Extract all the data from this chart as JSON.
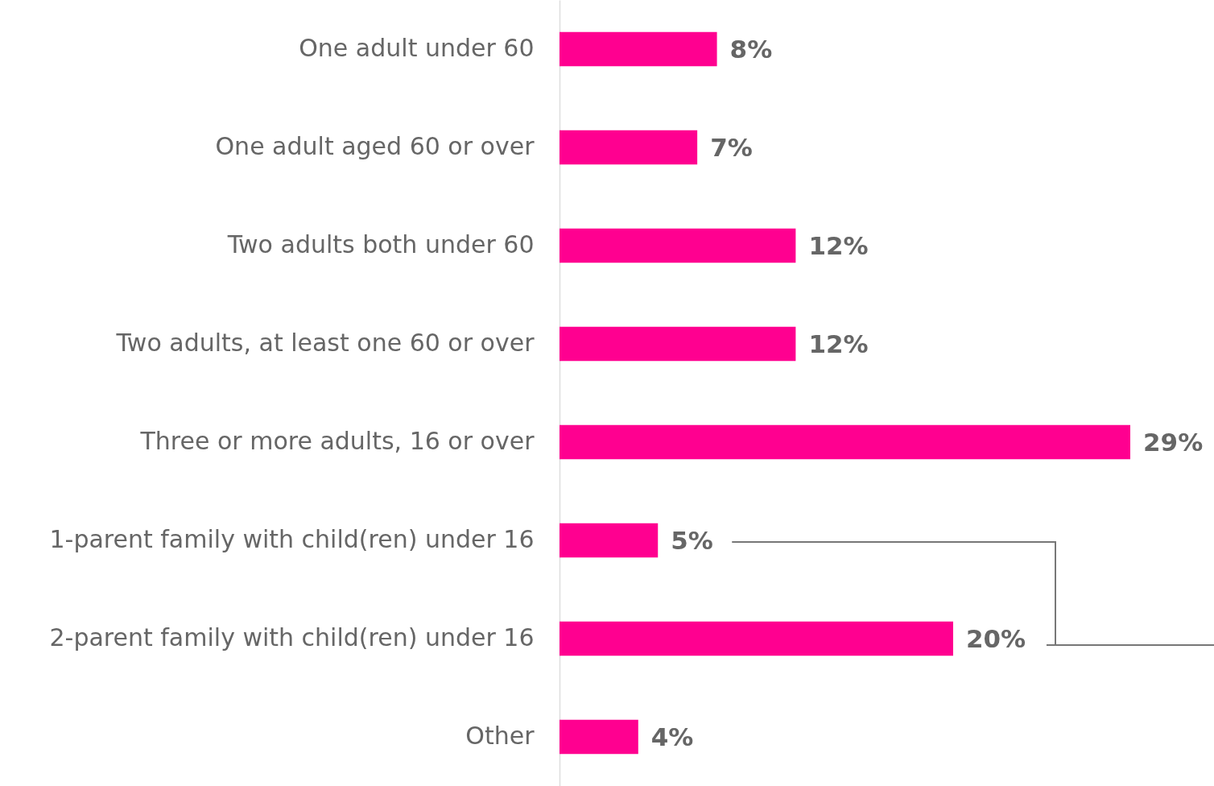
{
  "chart_data": {
    "type": "bar",
    "orientation": "horizontal",
    "categories": [
      "One adult under 60",
      "One adult aged 60 or over",
      "Two adults both under 60",
      "Two adults, at least one 60 or over",
      "Three or more adults, 16 or over",
      "1-parent family with child(ren) under 16",
      "2-parent family with child(ren) under 16",
      "Other"
    ],
    "values": [
      8,
      7,
      12,
      12,
      29,
      5,
      20,
      4
    ],
    "value_labels": [
      "8%",
      "7%",
      "12%",
      "12%",
      "29%",
      "5%",
      "20%",
      "4%"
    ],
    "color": "#ff0090"
  }
}
